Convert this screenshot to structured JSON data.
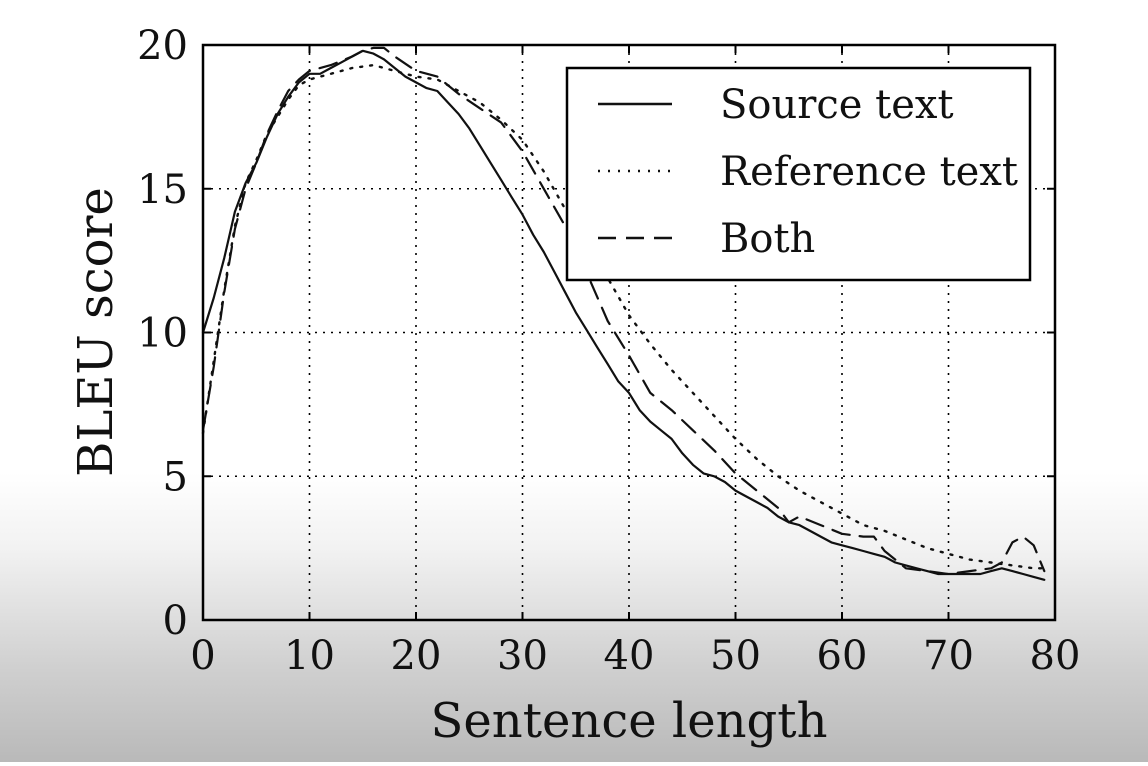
{
  "chart_data": {
    "type": "line",
    "xlabel": "Sentence length",
    "ylabel": "BLEU score",
    "xlim": [
      0,
      80
    ],
    "ylim": [
      0,
      20
    ],
    "xticks": [
      0,
      10,
      20,
      30,
      40,
      50,
      60,
      70,
      80
    ],
    "yticks": [
      0,
      5,
      10,
      15,
      20
    ],
    "grid": true,
    "legend": "top-right",
    "series": [
      {
        "name": "Source text",
        "style": "solid",
        "x": [
          0,
          1,
          2,
          3,
          4,
          5,
          6,
          7,
          8,
          9,
          10,
          11,
          12,
          13,
          14,
          15,
          16,
          17,
          18,
          19,
          20,
          21,
          22,
          23,
          24,
          25,
          26,
          27,
          28,
          29,
          30,
          31,
          32,
          33,
          34,
          35,
          36,
          37,
          38,
          39,
          40,
          41,
          42,
          43,
          44,
          45,
          46,
          47,
          48,
          49,
          50,
          51,
          52,
          53,
          54,
          55,
          56,
          57,
          58,
          59,
          60,
          61,
          62,
          63,
          64,
          65,
          66,
          67,
          68,
          69,
          70,
          71,
          72,
          73,
          74,
          75,
          76,
          77,
          78,
          79
        ],
        "y": [
          10.0,
          11.2,
          12.6,
          14.2,
          15.2,
          15.9,
          16.8,
          17.6,
          18.2,
          18.7,
          19.0,
          19.0,
          19.2,
          19.4,
          19.6,
          19.8,
          19.7,
          19.5,
          19.2,
          18.9,
          18.7,
          18.5,
          18.4,
          18.0,
          17.6,
          17.1,
          16.5,
          15.9,
          15.3,
          14.7,
          14.1,
          13.4,
          12.8,
          12.1,
          11.4,
          10.7,
          10.1,
          9.5,
          8.9,
          8.3,
          7.9,
          7.3,
          6.9,
          6.6,
          6.3,
          5.8,
          5.4,
          5.1,
          5.0,
          4.8,
          4.5,
          4.3,
          4.1,
          3.9,
          3.6,
          3.4,
          3.3,
          3.1,
          2.9,
          2.7,
          2.6,
          2.5,
          2.4,
          2.3,
          2.2,
          2.0,
          1.9,
          1.8,
          1.7,
          1.6,
          1.6,
          1.6,
          1.6,
          1.6,
          1.7,
          1.8,
          1.7,
          1.6,
          1.5,
          1.4
        ]
      },
      {
        "name": "Reference text",
        "style": "dotted",
        "x": [
          0,
          1,
          2,
          3,
          4,
          5,
          6,
          7,
          8,
          9,
          10,
          12,
          14,
          16,
          18,
          20,
          22,
          24,
          26,
          28,
          30,
          32,
          34,
          36,
          38,
          40,
          42,
          44,
          46,
          48,
          50,
          52,
          54,
          56,
          58,
          60,
          62,
          64,
          66,
          68,
          70,
          72,
          74,
          76,
          78,
          79
        ],
        "y": [
          6.5,
          9.0,
          11.5,
          13.7,
          15.2,
          16.0,
          16.9,
          17.5,
          18.1,
          18.6,
          18.8,
          19.0,
          19.2,
          19.3,
          19.1,
          18.9,
          18.8,
          18.4,
          18.0,
          17.4,
          16.7,
          15.6,
          14.3,
          12.9,
          11.9,
          10.6,
          9.6,
          8.7,
          7.9,
          7.1,
          6.3,
          5.6,
          5.0,
          4.5,
          4.1,
          3.7,
          3.3,
          3.1,
          2.8,
          2.5,
          2.3,
          2.1,
          2.0,
          1.9,
          1.8,
          1.8
        ]
      },
      {
        "name": "Both",
        "style": "dashed",
        "x": [
          0,
          1,
          2,
          3,
          4,
          5,
          6,
          7,
          8,
          9,
          10,
          12,
          14,
          15,
          16,
          17,
          18,
          20,
          22,
          24,
          26,
          28,
          30,
          32,
          34,
          36,
          38,
          40,
          42,
          44,
          46,
          48,
          50,
          52,
          54,
          55,
          56,
          58,
          60,
          62,
          63,
          64,
          65,
          66,
          68,
          70,
          72,
          74,
          75,
          76,
          77,
          78,
          79
        ],
        "y": [
          6.6,
          8.8,
          11.4,
          13.6,
          15.0,
          15.9,
          16.9,
          17.7,
          18.4,
          18.8,
          19.1,
          19.3,
          19.6,
          19.8,
          19.9,
          19.9,
          19.6,
          19.1,
          18.9,
          18.3,
          17.8,
          17.3,
          16.3,
          15.0,
          13.7,
          12.1,
          10.4,
          9.2,
          7.9,
          7.3,
          6.6,
          5.9,
          5.1,
          4.5,
          3.9,
          3.4,
          3.6,
          3.3,
          3.0,
          2.9,
          2.9,
          2.4,
          2.1,
          1.8,
          1.7,
          1.6,
          1.7,
          1.8,
          2.0,
          2.7,
          2.9,
          2.6,
          1.7
        ]
      }
    ]
  }
}
